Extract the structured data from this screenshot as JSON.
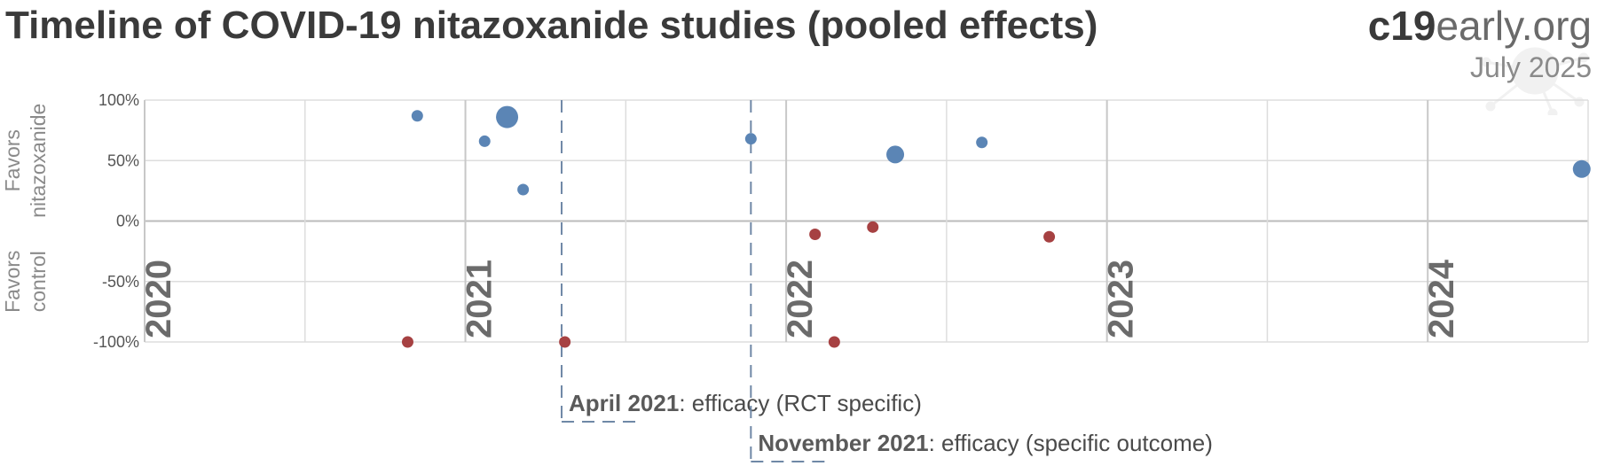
{
  "header": {
    "title": "Timeline of COVID-19 nitazoxanide studies (pooled effects)",
    "brand_bold": "c19",
    "brand_rest": "early.org",
    "date": "July 2025"
  },
  "chart_data": {
    "type": "scatter",
    "title": "Timeline of COVID-19 nitazoxanide studies (pooled effects)",
    "ylabel_top": [
      "Favors",
      "nitazoxanide"
    ],
    "ylabel_bottom": [
      "Favors",
      "control"
    ],
    "ylim": [
      -100,
      100
    ],
    "yticks": [
      {
        "value": 100,
        "label": "100%"
      },
      {
        "value": 50,
        "label": "50%"
      },
      {
        "value": 0,
        "label": "0%"
      },
      {
        "value": -50,
        "label": "-50%"
      },
      {
        "value": -100,
        "label": "-100%"
      }
    ],
    "xlim": [
      2020.0,
      2024.5
    ],
    "years": [
      "2020",
      "2021",
      "2022",
      "2023",
      "2024"
    ],
    "grid": true,
    "colors": {
      "favors_treatment": "#5b85b5",
      "favors_control": "#a64142",
      "event_line": "#6f88a6",
      "grid": "#dddddd",
      "zero": "#bbbbbb"
    },
    "points": [
      {
        "x": 2020.85,
        "y": 87,
        "size": "small"
      },
      {
        "x": 2021.06,
        "y": 66,
        "size": "small"
      },
      {
        "x": 2021.13,
        "y": 86,
        "size": "large"
      },
      {
        "x": 2021.18,
        "y": 26,
        "size": "small"
      },
      {
        "x": 2021.89,
        "y": 68,
        "size": "small"
      },
      {
        "x": 2022.34,
        "y": 55,
        "size": "medium"
      },
      {
        "x": 2022.61,
        "y": 65,
        "size": "small"
      },
      {
        "x": 2024.48,
        "y": 43,
        "size": "medium"
      },
      {
        "x": 2020.82,
        "y": -100,
        "size": "small"
      },
      {
        "x": 2021.31,
        "y": -100,
        "size": "small"
      },
      {
        "x": 2022.09,
        "y": -11,
        "size": "small"
      },
      {
        "x": 2022.15,
        "y": -100,
        "size": "small"
      },
      {
        "x": 2022.27,
        "y": -5,
        "size": "small"
      },
      {
        "x": 2022.82,
        "y": -13,
        "size": "small"
      }
    ],
    "events": [
      {
        "x": 2021.3,
        "label_bold": "April 2021",
        "label_rest": ": efficacy (RCT specific)"
      },
      {
        "x": 2021.89,
        "label_bold": "November 2021",
        "label_rest": ": efficacy (specific outcome)"
      }
    ]
  }
}
